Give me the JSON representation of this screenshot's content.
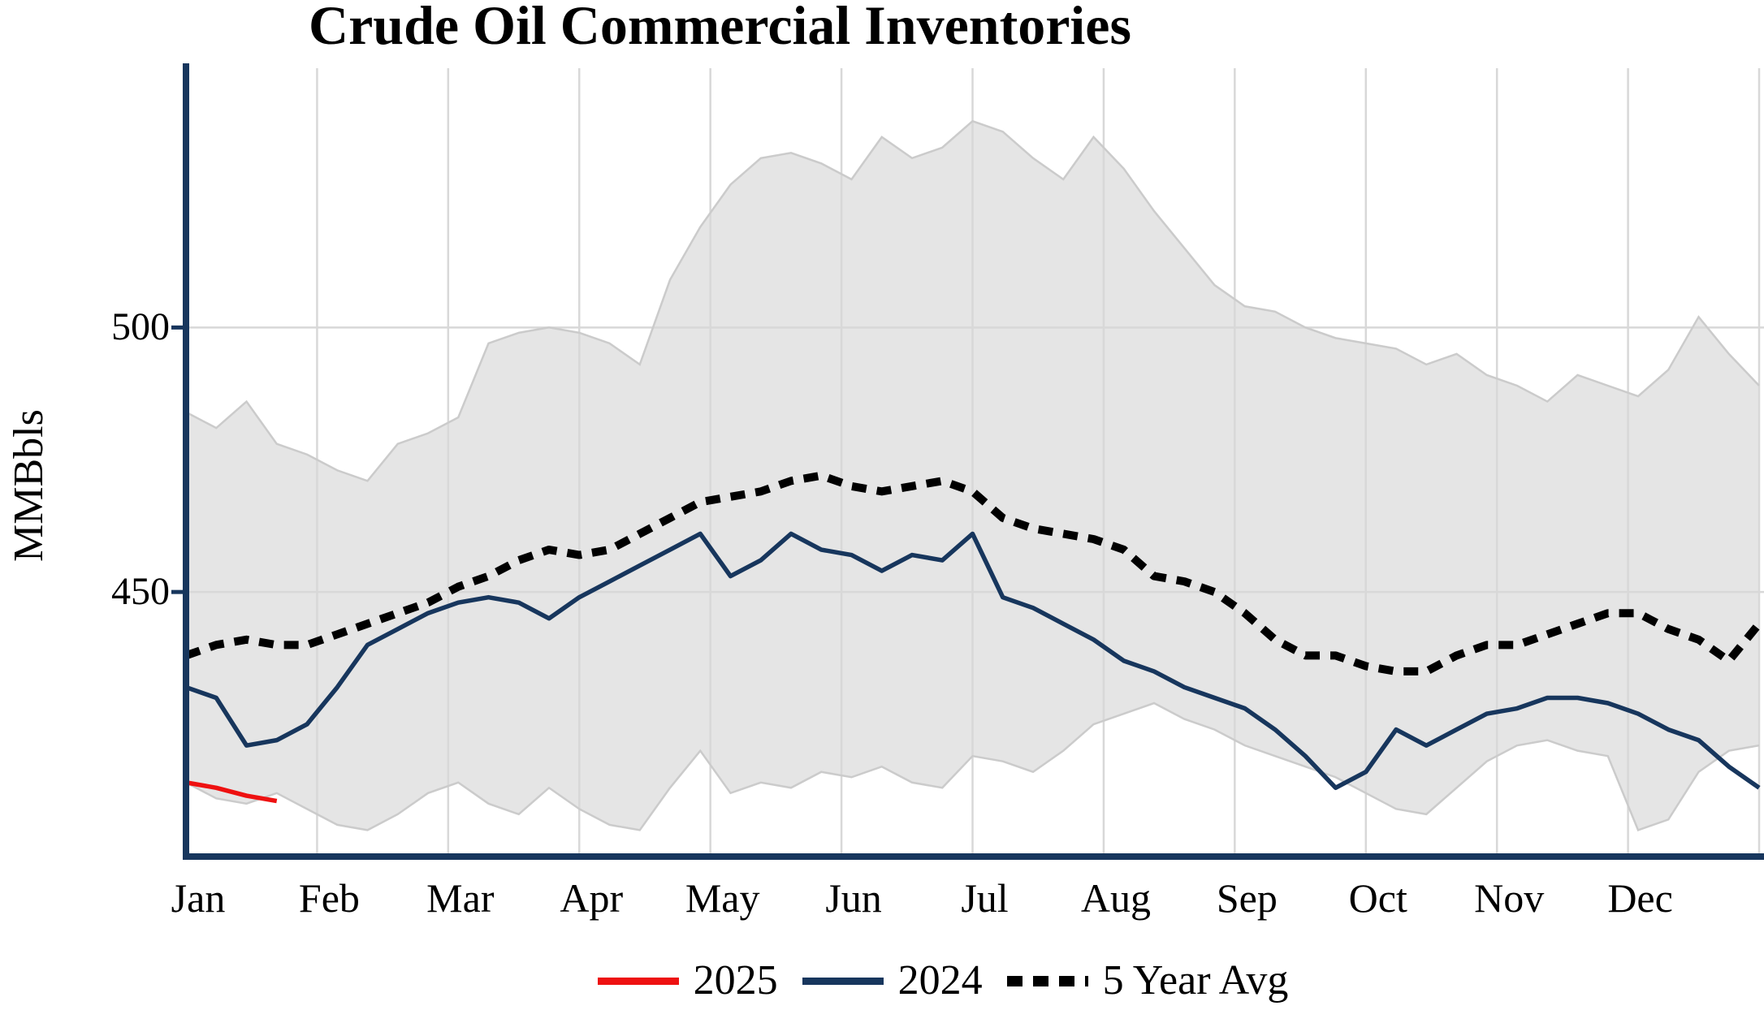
{
  "title": "Crude Oil Commercial Inventories",
  "ylabel": "MMBbls",
  "legend": [
    {
      "label": "2025",
      "color": "#ee1111",
      "style": "solid"
    },
    {
      "label": "2024",
      "color": "#17365d",
      "style": "solid"
    },
    {
      "label": "5 Year Avg",
      "color": "#000000",
      "style": "dotted"
    }
  ],
  "chart_data": {
    "type": "line",
    "title": "Crude Oil Commercial Inventories",
    "ylabel": "MMBbls",
    "x_categories": [
      "Jan",
      "Feb",
      "Mar",
      "Apr",
      "May",
      "Jun",
      "Jul",
      "Aug",
      "Sep",
      "Oct",
      "Nov",
      "Dec"
    ],
    "yticks": [
      450,
      500
    ],
    "ylim": [
      400,
      549
    ],
    "grid": true,
    "legend_position": "bottom",
    "axis_color": "#17365d",
    "grid_color": "#d8d8d8",
    "series": [
      {
        "name": "5 Year Range",
        "kind": "band",
        "fill": "#e5e5e5",
        "edge": "#cbcbcb",
        "upper": [
          484,
          481,
          486,
          478,
          476,
          473,
          471,
          478,
          480,
          483,
          497,
          499,
          500,
          499,
          497,
          493,
          509,
          519,
          527,
          532,
          533,
          531,
          528,
          536,
          532,
          534,
          539,
          537,
          532,
          528,
          536,
          530,
          522,
          515,
          508,
          504,
          503,
          500,
          498,
          497,
          496,
          493,
          495,
          491,
          489,
          486,
          491,
          489,
          487,
          492,
          502,
          495,
          489
        ],
        "lower": [
          414,
          411,
          410,
          412,
          409,
          406,
          405,
          408,
          412,
          414,
          410,
          408,
          413,
          409,
          406,
          405,
          413,
          420,
          412,
          414,
          413,
          416,
          415,
          417,
          414,
          413,
          419,
          418,
          416,
          420,
          425,
          427,
          429,
          426,
          424,
          421,
          419,
          417,
          415,
          412,
          409,
          408,
          413,
          418,
          421,
          422,
          420,
          419,
          405,
          407,
          416,
          420,
          421
        ]
      },
      {
        "name": "5 Year Avg",
        "kind": "line",
        "dash": "dotted",
        "color": "#000000",
        "values": [
          438,
          440,
          441,
          440,
          440,
          442,
          444,
          446,
          448,
          451,
          453,
          456,
          458,
          457,
          458,
          461,
          464,
          467,
          468,
          469,
          471,
          472,
          470,
          469,
          470,
          471,
          469,
          464,
          462,
          461,
          460,
          458,
          453,
          452,
          450,
          446,
          441,
          438,
          438,
          436,
          435,
          435,
          438,
          440,
          440,
          442,
          444,
          446,
          446,
          443,
          441,
          437,
          444
        ]
      },
      {
        "name": "2024",
        "kind": "line",
        "dash": "solid",
        "color": "#17365d",
        "values": [
          432,
          430,
          421,
          422,
          425,
          432,
          440,
          443,
          446,
          448,
          449,
          448,
          445,
          449,
          452,
          455,
          458,
          461,
          453,
          456,
          461,
          458,
          457,
          454,
          457,
          456,
          461,
          449,
          447,
          444,
          441,
          437,
          435,
          432,
          430,
          428,
          424,
          419,
          413,
          416,
          424,
          421,
          424,
          427,
          428,
          430,
          430,
          429,
          427,
          424,
          422,
          417,
          413
        ]
      },
      {
        "name": "2025",
        "kind": "line",
        "dash": "solid",
        "color": "#ee1111",
        "values": [
          414,
          413,
          411.5,
          410.5
        ]
      }
    ]
  }
}
